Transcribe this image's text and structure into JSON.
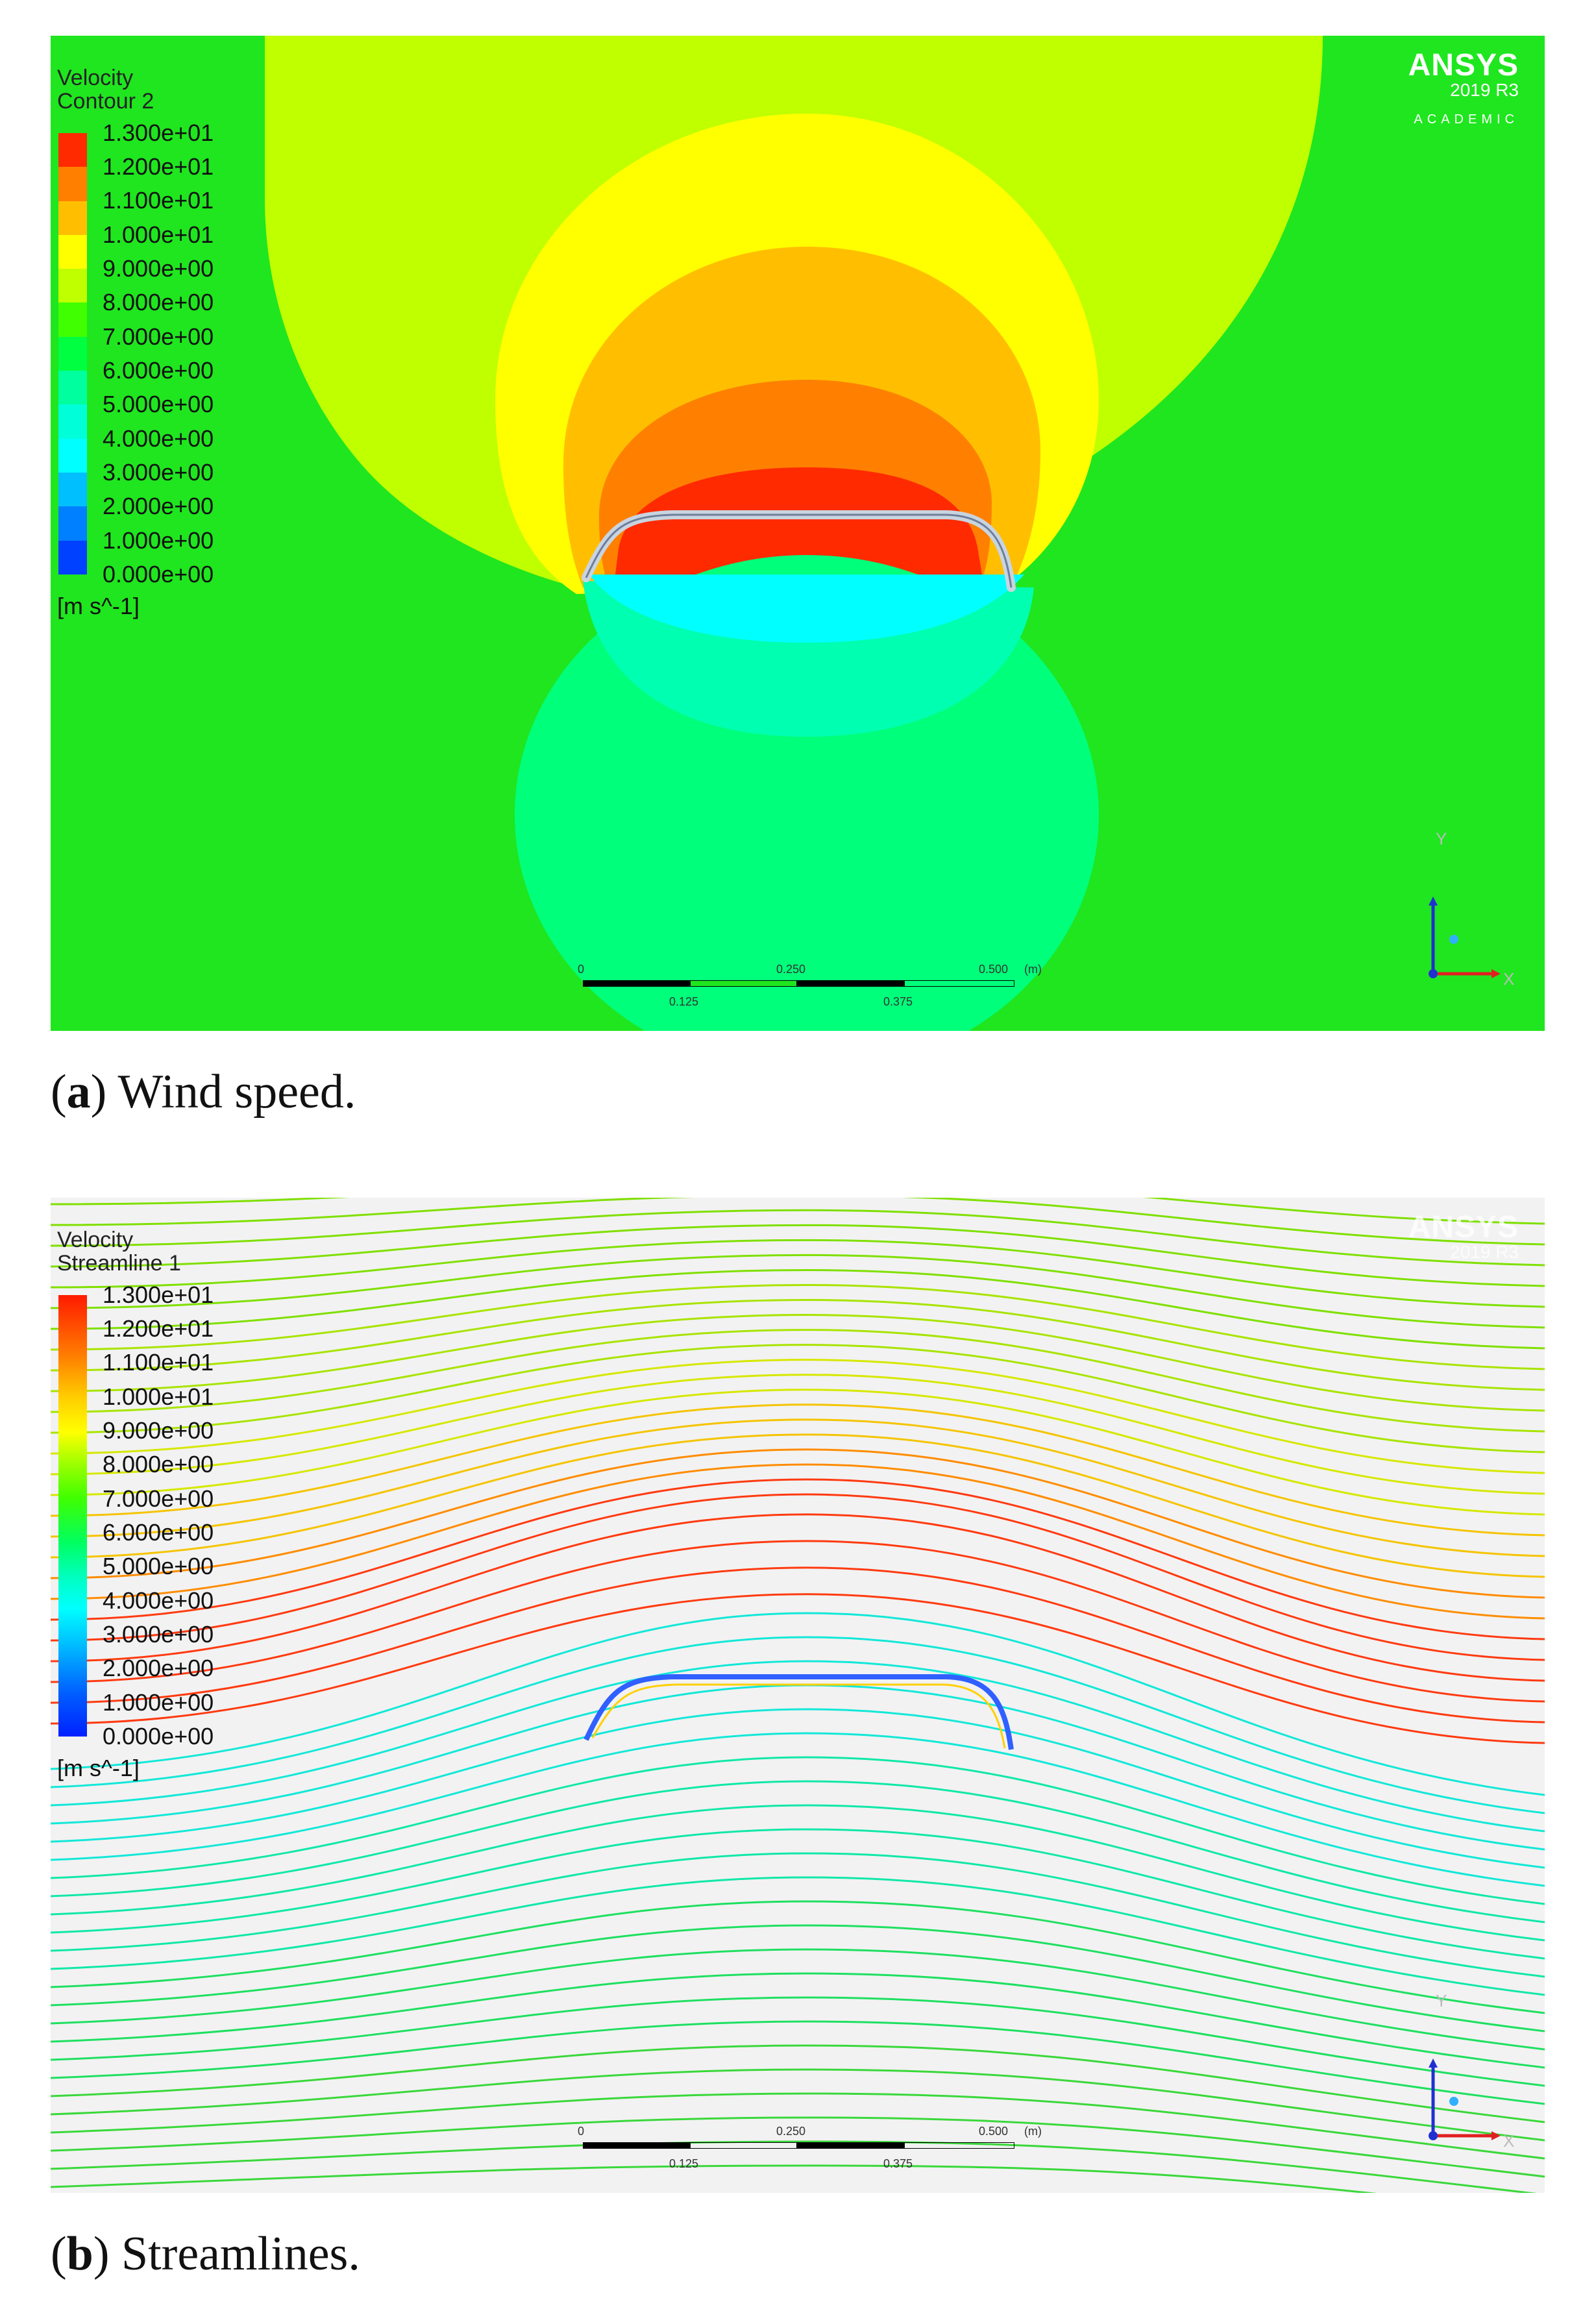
{
  "panels": [
    {
      "legend_title_line1": "Velocity",
      "legend_title_line2": "Contour 2",
      "caption_letter": "a",
      "caption_text": "Wind speed."
    },
    {
      "legend_title_line1": "Velocity",
      "legend_title_line2": "Streamline 1",
      "caption_letter": "b",
      "caption_text": "Streamlines."
    }
  ],
  "legend": {
    "values": [
      "1.300e+01",
      "1.200e+01",
      "1.100e+01",
      "1.000e+01",
      "9.000e+00",
      "8.000e+00",
      "7.000e+00",
      "6.000e+00",
      "5.000e+00",
      "4.000e+00",
      "3.000e+00",
      "2.000e+00",
      "1.000e+00",
      "0.000e+00"
    ],
    "unit": "[m s^-1]",
    "colors": [
      "#ff2a00",
      "#ff8000",
      "#ffbf00",
      "#ffff00",
      "#bfff00",
      "#40ff00",
      "#00ff40",
      "#00ff9f",
      "#00ffd9",
      "#00ffff",
      "#00bfff",
      "#0080ff",
      "#0040ff"
    ]
  },
  "logo": {
    "word": "ANSYS",
    "version": "2019 R3",
    "edition": "ACADEMIC"
  },
  "scale_bar": {
    "top_labels": [
      "0",
      "0.250",
      "0.500",
      "(m)"
    ],
    "bottom_labels": [
      "0.125",
      "0.375"
    ]
  },
  "axes": {
    "x": "X",
    "y": "Y"
  }
}
